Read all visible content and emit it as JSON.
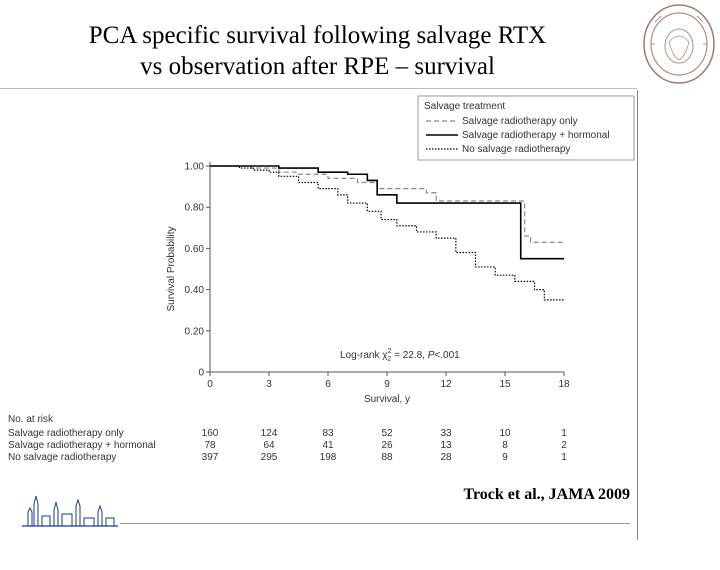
{
  "slide": {
    "title_line1": "PCA specific survival following salvage RTX",
    "title_line2": "vs observation after RPE – survival",
    "citation": "Trock et al., JAMA 2009",
    "seal_icon": "university-seal-icon",
    "logo_icon": "city-skyline-icon"
  },
  "chart_data": {
    "type": "line",
    "step": true,
    "xlabel": "Survival, y",
    "ylabel": "Survival Probability",
    "xlim": [
      0,
      18
    ],
    "ylim": [
      0,
      1.0
    ],
    "x_ticks": [
      "0",
      "3",
      "6",
      "9",
      "12",
      "15",
      "18"
    ],
    "y_ticks": [
      "0",
      "0.20",
      "0.40",
      "0.60",
      "0.80",
      "1.00"
    ],
    "legend_title": "Salvage treatment",
    "legend_position": "top-right",
    "annotation": {
      "prefix": "Log-rank χ",
      "sup": "2",
      "sub": "2",
      "mid": " = 22.8, ",
      "p": "P",
      "suffix": "<.001"
    },
    "series": [
      {
        "name": "Salvage radiotherapy only",
        "style": "dashed",
        "color": "#888888",
        "points": [
          [
            0,
            1.0
          ],
          [
            2.1,
            0.99
          ],
          [
            3.5,
            0.97
          ],
          [
            4.5,
            0.96
          ],
          [
            6,
            0.94
          ],
          [
            7.5,
            0.92
          ],
          [
            8.5,
            0.89
          ],
          [
            11,
            0.87
          ],
          [
            11.5,
            0.83
          ],
          [
            16,
            0.66
          ],
          [
            16.3,
            0.63
          ],
          [
            18,
            0.63
          ]
        ]
      },
      {
        "name": "Salvage radiotherapy + hormonal",
        "style": "solid",
        "color": "#000000",
        "points": [
          [
            0,
            1.0
          ],
          [
            3.5,
            0.99
          ],
          [
            5.5,
            0.97
          ],
          [
            7,
            0.96
          ],
          [
            8,
            0.93
          ],
          [
            8.5,
            0.86
          ],
          [
            9.5,
            0.82
          ],
          [
            15.7,
            0.82
          ],
          [
            15.8,
            0.55
          ],
          [
            18,
            0.55
          ]
        ]
      },
      {
        "name": "No salvage radiotherapy",
        "style": "dotted",
        "color": "#000000",
        "points": [
          [
            0,
            1.0
          ],
          [
            1.5,
            0.99
          ],
          [
            2.2,
            0.98
          ],
          [
            3,
            0.97
          ],
          [
            3.5,
            0.95
          ],
          [
            4.5,
            0.92
          ],
          [
            5.5,
            0.89
          ],
          [
            6.5,
            0.86
          ],
          [
            7,
            0.82
          ],
          [
            8,
            0.78
          ],
          [
            8.7,
            0.74
          ],
          [
            9.5,
            0.71
          ],
          [
            10.5,
            0.68
          ],
          [
            11.5,
            0.65
          ],
          [
            12.5,
            0.58
          ],
          [
            13.5,
            0.51
          ],
          [
            14.5,
            0.47
          ],
          [
            15.5,
            0.44
          ],
          [
            16.5,
            0.4
          ],
          [
            17,
            0.35
          ],
          [
            18,
            0.35
          ]
        ]
      }
    ],
    "at_risk": {
      "header": "No. at risk",
      "rows": [
        {
          "label": "Salvage radiotherapy only",
          "values": [
            "160",
            "124",
            "83",
            "52",
            "33",
            "10",
            "1"
          ]
        },
        {
          "label": "Salvage radiotherapy + hormonal",
          "values": [
            "78",
            "64",
            "41",
            "26",
            "13",
            "8",
            "2"
          ]
        },
        {
          "label": "No salvage radiotherapy",
          "values": [
            "397",
            "295",
            "198",
            "88",
            "28",
            "9",
            "1"
          ]
        }
      ]
    }
  }
}
